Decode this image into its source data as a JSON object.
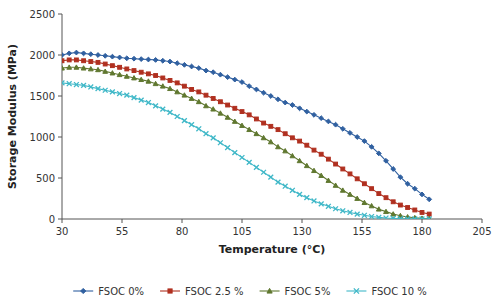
{
  "chart_data": {
    "type": "line",
    "xlabel": "Temperature (°C)",
    "ylabel": "Storage Modulus (MPa)",
    "x": [
      30,
      33,
      36,
      39,
      42,
      45,
      48,
      51,
      54,
      57,
      60,
      63,
      66,
      69,
      72,
      75,
      78,
      81,
      84,
      87,
      90,
      93,
      96,
      99,
      102,
      105,
      108,
      111,
      114,
      117,
      120,
      123,
      126,
      129,
      132,
      135,
      138,
      141,
      144,
      147,
      150,
      153,
      156,
      159,
      162,
      165,
      168,
      171,
      174,
      177,
      180,
      183
    ],
    "series": [
      {
        "name": "FSOC 0%",
        "color": "#3060A0",
        "marker": "diamond",
        "values": [
          2000,
          2020,
          2030,
          2020,
          2010,
          2000,
          1990,
          1980,
          1970,
          1960,
          1955,
          1950,
          1945,
          1940,
          1930,
          1920,
          1900,
          1880,
          1860,
          1840,
          1810,
          1790,
          1760,
          1730,
          1700,
          1670,
          1620,
          1580,
          1540,
          1500,
          1460,
          1420,
          1390,
          1350,
          1310,
          1270,
          1230,
          1190,
          1150,
          1100,
          1050,
          1000,
          950,
          880,
          800,
          710,
          610,
          510,
          430,
          370,
          300,
          240
        ]
      },
      {
        "name": "FSOC 2.5 %",
        "color": "#B03020",
        "marker": "square",
        "values": [
          1930,
          1940,
          1940,
          1930,
          1920,
          1910,
          1890,
          1870,
          1850,
          1830,
          1810,
          1790,
          1770,
          1750,
          1720,
          1690,
          1660,
          1620,
          1580,
          1550,
          1510,
          1470,
          1430,
          1390,
          1350,
          1310,
          1270,
          1220,
          1170,
          1130,
          1090,
          1040,
          990,
          950,
          900,
          840,
          790,
          730,
          670,
          610,
          550,
          490,
          430,
          370,
          310,
          260,
          210,
          170,
          140,
          110,
          80,
          60
        ]
      },
      {
        "name": "FSOC 5%",
        "color": "#607830",
        "marker": "triangle",
        "values": [
          1840,
          1850,
          1850,
          1840,
          1830,
          1820,
          1800,
          1780,
          1760,
          1740,
          1720,
          1700,
          1680,
          1650,
          1620,
          1590,
          1550,
          1510,
          1470,
          1430,
          1380,
          1340,
          1290,
          1240,
          1190,
          1140,
          1090,
          1040,
          990,
          940,
          880,
          830,
          770,
          710,
          650,
          590,
          530,
          470,
          410,
          350,
          300,
          250,
          200,
          160,
          120,
          90,
          60,
          40,
          25,
          15,
          8,
          5
        ]
      },
      {
        "name": "FSOC 10 %",
        "color": "#40B8C8",
        "marker": "x",
        "values": [
          1660,
          1650,
          1640,
          1630,
          1610,
          1590,
          1570,
          1550,
          1530,
          1510,
          1480,
          1450,
          1420,
          1380,
          1340,
          1300,
          1250,
          1200,
          1150,
          1100,
          1040,
          990,
          930,
          870,
          810,
          750,
          690,
          630,
          570,
          510,
          450,
          400,
          350,
          300,
          260,
          220,
          185,
          155,
          125,
          100,
          80,
          60,
          45,
          30,
          20,
          12,
          7,
          4,
          3,
          2,
          1,
          1
        ]
      }
    ],
    "xlim": [
      30,
      205
    ],
    "ylim": [
      0,
      2500
    ],
    "xticks": [
      30,
      55,
      80,
      105,
      130,
      155,
      180,
      205
    ],
    "yticks": [
      0,
      500,
      1000,
      1500,
      2000,
      2500
    ],
    "grid": false,
    "legend": "bottom"
  }
}
